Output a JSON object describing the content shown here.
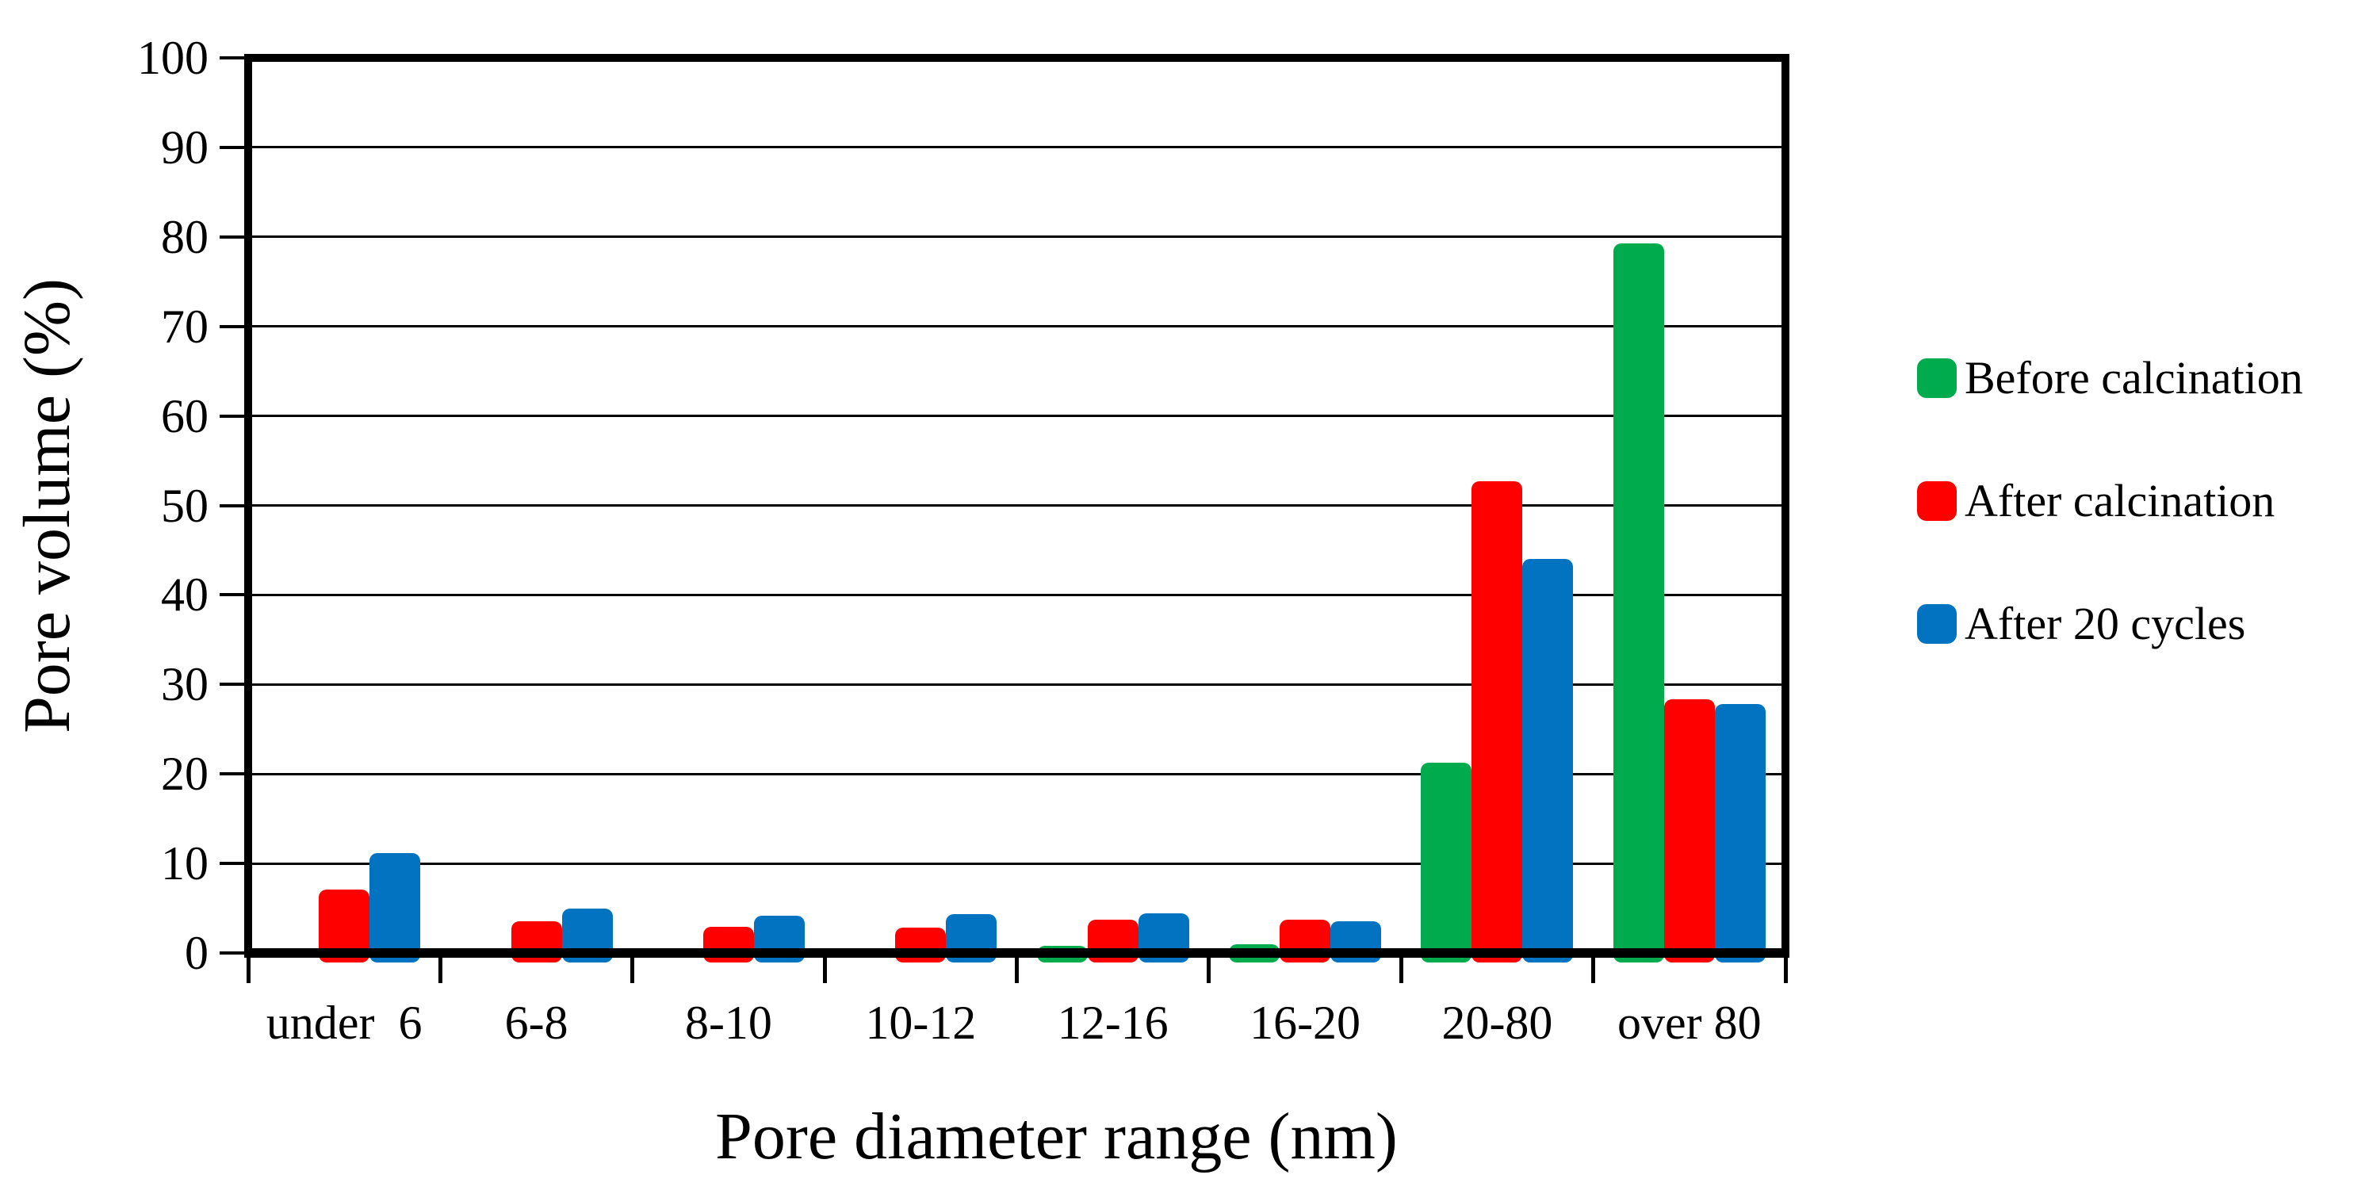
{
  "chart_data": {
    "type": "bar",
    "title": "",
    "xlabel": "Pore diameter range (nm)",
    "ylabel": "Pore volume (%)",
    "ylim": [
      0,
      100
    ],
    "ytick_step": 10,
    "ytick_labels": [
      "0",
      "10",
      "20",
      "30",
      "40",
      "50",
      "60",
      "70",
      "80",
      "90",
      "100"
    ],
    "categories": [
      "under  6",
      "6-8",
      "8-10",
      "10-12",
      "12-16",
      "16-20",
      "20-80",
      "over 80"
    ],
    "series": [
      {
        "name": "Before calcination",
        "color": "#00AB4E",
        "values": [
          0,
          0,
          0,
          0,
          0.8,
          1.0,
          21.3,
          79.3
        ]
      },
      {
        "name": "After calcination",
        "color": "#FF0000",
        "values": [
          7.1,
          3.5,
          2.9,
          2.8,
          3.7,
          3.7,
          52.7,
          28.3
        ]
      },
      {
        "name": "After 20 cycles",
        "color": "#0173C1",
        "values": [
          11.2,
          5.0,
          4.2,
          4.3,
          4.4,
          3.5,
          44.0,
          27.8
        ]
      }
    ],
    "legend_position": "right",
    "grid": "horizontal",
    "axis_color": "#000000",
    "background_color": "#FFFFFF"
  }
}
